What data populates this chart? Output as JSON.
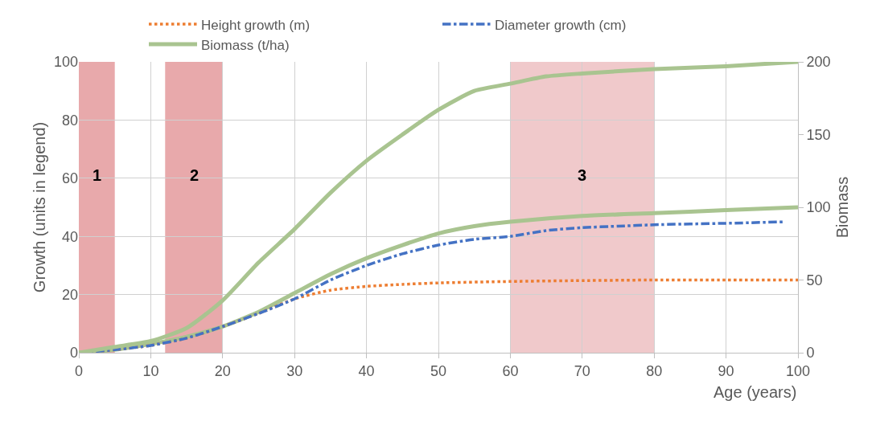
{
  "chart_data": {
    "type": "line",
    "xlabel": "Age (years)",
    "ylabel": "Growth (units in legend)",
    "y2label": "Biomass",
    "series": [
      {
        "color": "#a9c490",
        "line_style": "solid",
        "x": [
          0,
          5,
          10,
          15,
          20,
          25,
          30,
          35,
          40,
          45,
          50,
          55,
          60,
          70,
          80,
          90,
          100
        ],
        "values": [
          0,
          1,
          3,
          5.5,
          9,
          14,
          20.5,
          27,
          32.5,
          37,
          41,
          43.5,
          45,
          47,
          48,
          49,
          50
        ]
      },
      {
        "name": "Height growth (m)",
        "color": "#ed7d31",
        "line_style": "dotted",
        "x": [
          0,
          5,
          10,
          15,
          20,
          25,
          30,
          35,
          40,
          45,
          50,
          60,
          70,
          80,
          90,
          100
        ],
        "values": [
          0,
          1,
          2.5,
          5,
          9,
          13.5,
          18.5,
          21.5,
          22.8,
          23.5,
          24,
          24.5,
          24.8,
          25,
          25,
          25
        ]
      },
      {
        "name": "Diameter growth (cm)",
        "color": "#4472c4",
        "line_style": "dashed",
        "x": [
          0,
          5,
          10,
          15,
          20,
          25,
          30,
          35,
          40,
          45,
          50,
          55,
          60,
          65,
          70,
          75,
          80,
          90,
          98
        ],
        "values": [
          0,
          1,
          2.5,
          5,
          9,
          13.5,
          18.5,
          25,
          30,
          34,
          37,
          39,
          40,
          42,
          43,
          43.5,
          44,
          44.5,
          45
        ]
      },
      {
        "name": "Biomass (t/ha)",
        "color": "#a9c490",
        "line_style": "solid",
        "axis": "y2",
        "x": [
          0,
          5,
          10,
          15,
          20,
          25,
          30,
          35,
          40,
          45,
          50,
          55,
          60,
          65,
          70,
          80,
          90,
          100
        ],
        "values": [
          0,
          4,
          8,
          17,
          36,
          62,
          85,
          110,
          132,
          150,
          167,
          180,
          185,
          190,
          192,
          195,
          197,
          200
        ]
      }
    ],
    "xlim": [
      0,
      100
    ],
    "xticks": [
      0,
      10,
      20,
      30,
      40,
      50,
      60,
      70,
      80,
      90,
      100
    ],
    "ylim": [
      0,
      100
    ],
    "yticks": [
      0,
      20,
      40,
      60,
      80,
      100
    ],
    "y2lim": [
      0,
      200
    ],
    "y2ticks": [
      0,
      50,
      100,
      150,
      200
    ],
    "bands": [
      {
        "axis": "x",
        "from": 0,
        "to": 5,
        "label": "1",
        "color": "#e8a9ab"
      },
      {
        "axis": "x",
        "from": 12,
        "to": 20,
        "label": "2",
        "color": "#e8a9ab"
      },
      {
        "axis": "x",
        "from": 60,
        "to": 80,
        "label": "3",
        "color": "#f0c9cb"
      }
    ],
    "grid": true,
    "legend": "top",
    "marker": "none"
  }
}
